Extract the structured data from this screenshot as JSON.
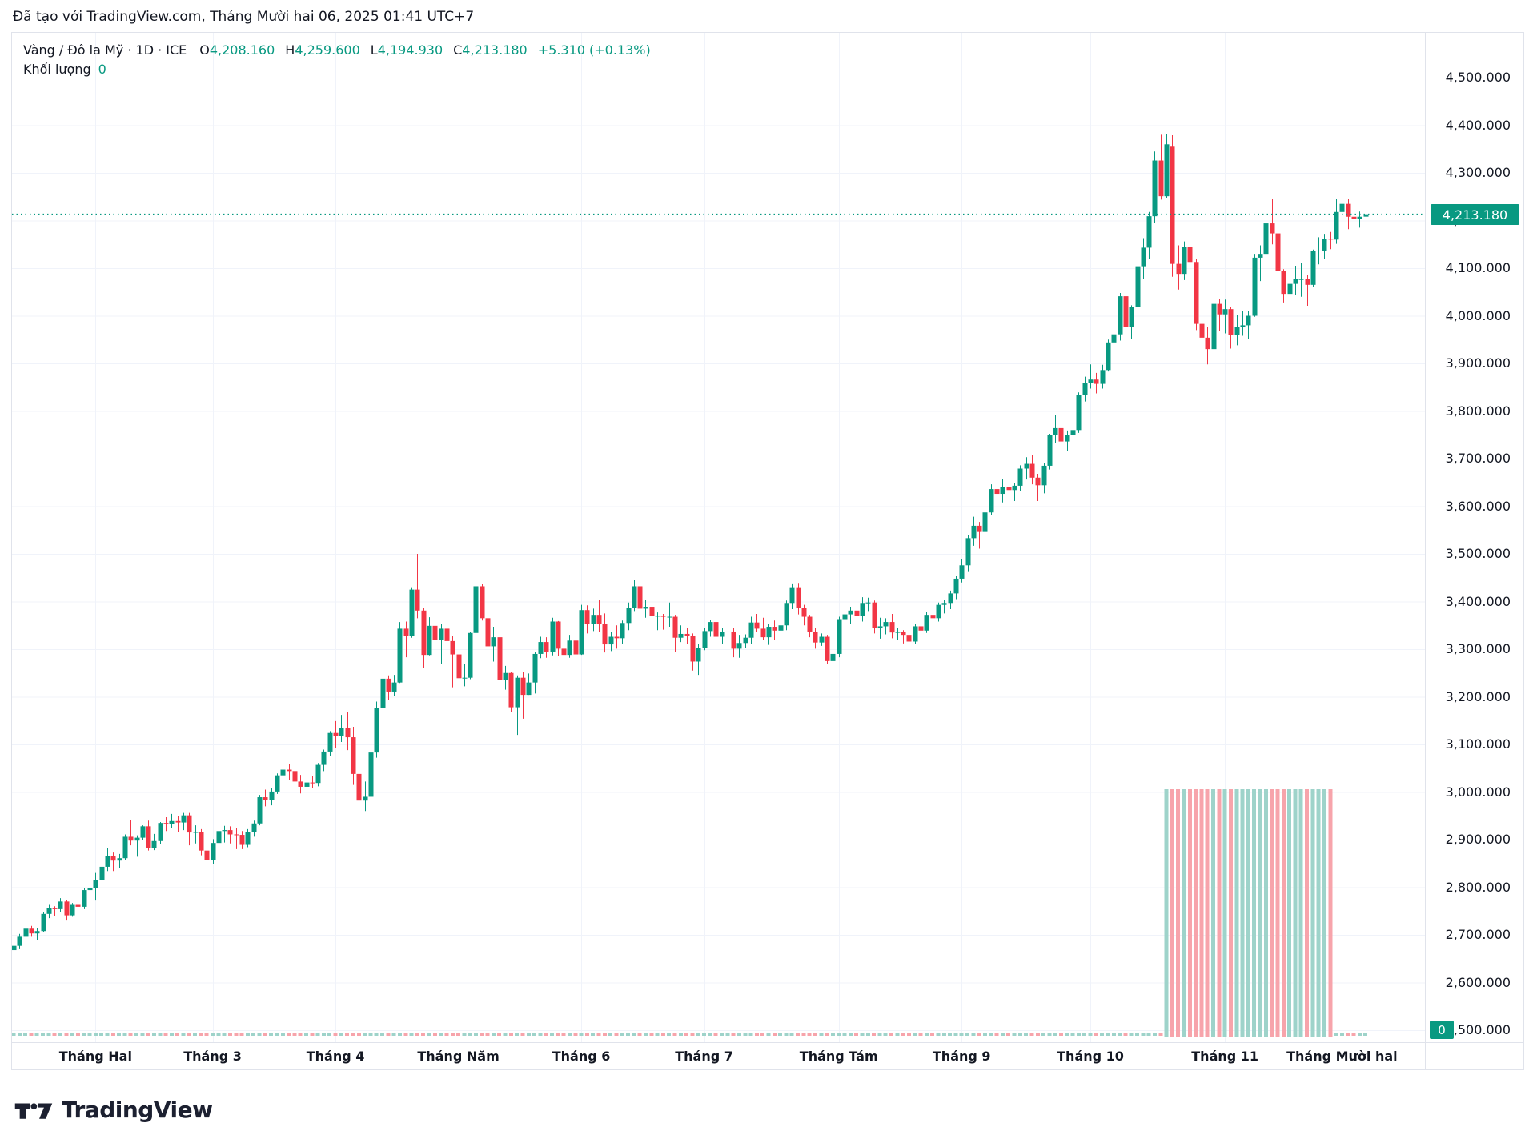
{
  "header": {
    "attribution": "Đã tạo với TradingView.com, Tháng Mười hai 06, 2025 01:41 UTC+7"
  },
  "legend": {
    "symbol": "Vàng / Đô la Mỹ · 1D · ICE",
    "items": [
      {
        "label": "O",
        "value": "4,208.160"
      },
      {
        "label": "H",
        "value": "4,259.600"
      },
      {
        "label": "L",
        "value": "4,194.930"
      },
      {
        "label": "C",
        "value": "4,213.180"
      }
    ],
    "change": "+5.310 (+0.13%)",
    "volume_label": "Khối lượng",
    "volume_value": "0"
  },
  "price_scale": {
    "last_price_label": "4,213.180",
    "volume_badge": "0",
    "ticks": [
      [
        "4,500.000",
        4500
      ],
      [
        "4,400.000",
        4400
      ],
      [
        "4,300.000",
        4300
      ],
      [
        "4,200.000",
        4200
      ],
      [
        "4,100.000",
        4100
      ],
      [
        "4,000.000",
        4000
      ],
      [
        "3,900.000",
        3900
      ],
      [
        "3,800.000",
        3800
      ],
      [
        "3,700.000",
        3700
      ],
      [
        "3,600.000",
        3600
      ],
      [
        "3,500.000",
        3500
      ],
      [
        "3,400.000",
        3400
      ],
      [
        "3,300.000",
        3300
      ],
      [
        "3,200.000",
        3200
      ],
      [
        "3,100.000",
        3100
      ],
      [
        "3,000.000",
        3000
      ],
      [
        "2,900.000",
        2900
      ],
      [
        "2,800.000",
        2800
      ],
      [
        "2,700.000",
        2700
      ],
      [
        "2,600.000",
        2600
      ],
      [
        "2,500.000",
        2500
      ]
    ]
  },
  "time_scale": {
    "ticks": [
      [
        "Tháng Hai",
        14
      ],
      [
        "Tháng 3",
        34
      ],
      [
        "Tháng 4",
        55
      ],
      [
        "Tháng Năm",
        76
      ],
      [
        "Tháng 6",
        97
      ],
      [
        "Tháng 7",
        118
      ],
      [
        "Tháng Tám",
        141
      ],
      [
        "Tháng 9",
        162
      ],
      [
        "Tháng 10",
        184
      ],
      [
        "Tháng 11",
        207
      ],
      [
        "Tháng Mười hai",
        227
      ]
    ]
  },
  "chart_data": {
    "type": "candlestick",
    "title": "Vàng / Đô la Mỹ",
    "timeframe": "1D",
    "exchange": "ICE",
    "ylabel": "",
    "xlabel": "",
    "y_axis": {
      "min": 2500,
      "max": 4500,
      "tick_step": 100,
      "grid": true
    },
    "last_price": 4213.18,
    "volume_full_height_range": [
      197,
      225
    ],
    "candles": [
      [
        2668,
        2684,
        2656,
        2677
      ],
      [
        2677,
        2702,
        2670,
        2696
      ],
      [
        2696,
        2724,
        2690,
        2713
      ],
      [
        2713,
        2719,
        2696,
        2703
      ],
      [
        2703,
        2715,
        2689,
        2708
      ],
      [
        2708,
        2748,
        2705,
        2744
      ],
      [
        2744,
        2763,
        2735,
        2756
      ],
      [
        2756,
        2760,
        2739,
        2754
      ],
      [
        2754,
        2777,
        2748,
        2770
      ],
      [
        2770,
        2773,
        2730,
        2741
      ],
      [
        2741,
        2767,
        2738,
        2763
      ],
      [
        2763,
        2770,
        2748,
        2759
      ],
      [
        2759,
        2798,
        2754,
        2794
      ],
      [
        2794,
        2817,
        2772,
        2798
      ],
      [
        2798,
        2830,
        2772,
        2815
      ],
      [
        2815,
        2845,
        2808,
        2843
      ],
      [
        2843,
        2882,
        2834,
        2866
      ],
      [
        2866,
        2873,
        2834,
        2856
      ],
      [
        2856,
        2870,
        2840,
        2861
      ],
      [
        2861,
        2911,
        2858,
        2906
      ],
      [
        2906,
        2942,
        2888,
        2898
      ],
      [
        2898,
        2909,
        2864,
        2904
      ],
      [
        2904,
        2930,
        2900,
        2928
      ],
      [
        2928,
        2940,
        2877,
        2883
      ],
      [
        2883,
        2912,
        2878,
        2897
      ],
      [
        2897,
        2937,
        2890,
        2935
      ],
      [
        2935,
        2947,
        2918,
        2933
      ],
      [
        2933,
        2954,
        2924,
        2939
      ],
      [
        2939,
        2950,
        2916,
        2936
      ],
      [
        2936,
        2956,
        2920,
        2951
      ],
      [
        2951,
        2956,
        2888,
        2915
      ],
      [
        2915,
        2930,
        2892,
        2916
      ],
      [
        2916,
        2922,
        2867,
        2877
      ],
      [
        2877,
        2885,
        2832,
        2857
      ],
      [
        2857,
        2901,
        2848,
        2893
      ],
      [
        2893,
        2927,
        2880,
        2918
      ],
      [
        2918,
        2929,
        2894,
        2920
      ],
      [
        2920,
        2928,
        2892,
        2911
      ],
      [
        2911,
        2924,
        2880,
        2910
      ],
      [
        2910,
        2918,
        2880,
        2889
      ],
      [
        2889,
        2922,
        2884,
        2916
      ],
      [
        2916,
        2940,
        2906,
        2934
      ],
      [
        2934,
        2994,
        2930,
        2989
      ],
      [
        2989,
        3005,
        2970,
        2984
      ],
      [
        2984,
        3009,
        2972,
        3001
      ],
      [
        3001,
        3039,
        2996,
        3035
      ],
      [
        3035,
        3057,
        3022,
        3047
      ],
      [
        3047,
        3059,
        3026,
        3044
      ],
      [
        3044,
        3052,
        3000,
        3022
      ],
      [
        3022,
        3036,
        2997,
        3011
      ],
      [
        3011,
        3031,
        3003,
        3020
      ],
      [
        3020,
        3033,
        3008,
        3019
      ],
      [
        3019,
        3061,
        3012,
        3057
      ],
      [
        3057,
        3089,
        3044,
        3085
      ],
      [
        3085,
        3128,
        3076,
        3124
      ],
      [
        3124,
        3149,
        3093,
        3118
      ],
      [
        3118,
        3162,
        3105,
        3134
      ],
      [
        3134,
        3168,
        3088,
        3115
      ],
      [
        3115,
        3137,
        3015,
        3038
      ],
      [
        3038,
        3056,
        2956,
        2982
      ],
      [
        2982,
        3022,
        2960,
        2990
      ],
      [
        2990,
        3100,
        2970,
        3083
      ],
      [
        3083,
        3190,
        3072,
        3177
      ],
      [
        3177,
        3248,
        3160,
        3238
      ],
      [
        3238,
        3245,
        3193,
        3211
      ],
      [
        3211,
        3246,
        3202,
        3230
      ],
      [
        3230,
        3357,
        3229,
        3343
      ],
      [
        3343,
        3358,
        3283,
        3327
      ],
      [
        3327,
        3430,
        3324,
        3425
      ],
      [
        3425,
        3500,
        3365,
        3381
      ],
      [
        3381,
        3386,
        3260,
        3288
      ],
      [
        3288,
        3367,
        3287,
        3349
      ],
      [
        3349,
        3352,
        3265,
        3320
      ],
      [
        3320,
        3352,
        3268,
        3343
      ],
      [
        3343,
        3348,
        3300,
        3317
      ],
      [
        3317,
        3327,
        3220,
        3289
      ],
      [
        3289,
        3298,
        3202,
        3239
      ],
      [
        3239,
        3269,
        3222,
        3240
      ],
      [
        3240,
        3337,
        3237,
        3334
      ],
      [
        3334,
        3438,
        3322,
        3432
      ],
      [
        3432,
        3437,
        3360,
        3365
      ],
      [
        3365,
        3415,
        3291,
        3306
      ],
      [
        3306,
        3347,
        3274,
        3325
      ],
      [
        3325,
        3328,
        3207,
        3236
      ],
      [
        3236,
        3265,
        3215,
        3250
      ],
      [
        3250,
        3252,
        3168,
        3178
      ],
      [
        3178,
        3245,
        3120,
        3240
      ],
      [
        3240,
        3252,
        3154,
        3204
      ],
      [
        3204,
        3249,
        3204,
        3230
      ],
      [
        3230,
        3295,
        3207,
        3290
      ],
      [
        3290,
        3326,
        3281,
        3315
      ],
      [
        3315,
        3325,
        3282,
        3295
      ],
      [
        3295,
        3366,
        3287,
        3358
      ],
      [
        3358,
        3359,
        3286,
        3301
      ],
      [
        3301,
        3325,
        3277,
        3288
      ],
      [
        3288,
        3330,
        3282,
        3318
      ],
      [
        3318,
        3322,
        3250,
        3289
      ],
      [
        3289,
        3393,
        3288,
        3382
      ],
      [
        3382,
        3392,
        3333,
        3353
      ],
      [
        3353,
        3385,
        3338,
        3372
      ],
      [
        3372,
        3403,
        3337,
        3353
      ],
      [
        3353,
        3375,
        3293,
        3310
      ],
      [
        3310,
        3337,
        3296,
        3326
      ],
      [
        3326,
        3350,
        3301,
        3323
      ],
      [
        3323,
        3360,
        3310,
        3355
      ],
      [
        3355,
        3398,
        3340,
        3386
      ],
      [
        3386,
        3446,
        3380,
        3432
      ],
      [
        3432,
        3451,
        3381,
        3385
      ],
      [
        3385,
        3403,
        3366,
        3389
      ],
      [
        3389,
        3396,
        3363,
        3369
      ],
      [
        3369,
        3377,
        3340,
        3370
      ],
      [
        3370,
        3374,
        3341,
        3368
      ],
      [
        3368,
        3398,
        3347,
        3368
      ],
      [
        3368,
        3372,
        3295,
        3324
      ],
      [
        3324,
        3350,
        3315,
        3332
      ],
      [
        3332,
        3345,
        3310,
        3328
      ],
      [
        3328,
        3333,
        3255,
        3274
      ],
      [
        3274,
        3310,
        3246,
        3303
      ],
      [
        3303,
        3345,
        3298,
        3338
      ],
      [
        3338,
        3362,
        3326,
        3357
      ],
      [
        3357,
        3366,
        3312,
        3326
      ],
      [
        3326,
        3345,
        3311,
        3337
      ],
      [
        3337,
        3343,
        3321,
        3337
      ],
      [
        3337,
        3345,
        3283,
        3301
      ],
      [
        3301,
        3330,
        3282,
        3313
      ],
      [
        3313,
        3331,
        3303,
        3324
      ],
      [
        3324,
        3368,
        3310,
        3356
      ],
      [
        3356,
        3374,
        3337,
        3343
      ],
      [
        3343,
        3366,
        3319,
        3325
      ],
      [
        3325,
        3352,
        3309,
        3347
      ],
      [
        3347,
        3360,
        3320,
        3339
      ],
      [
        3339,
        3360,
        3325,
        3350
      ],
      [
        3350,
        3402,
        3340,
        3397
      ],
      [
        3397,
        3438,
        3384,
        3430
      ],
      [
        3430,
        3439,
        3373,
        3387
      ],
      [
        3387,
        3393,
        3350,
        3368
      ],
      [
        3368,
        3372,
        3325,
        3337
      ],
      [
        3337,
        3345,
        3301,
        3314
      ],
      [
        3314,
        3333,
        3307,
        3326
      ],
      [
        3326,
        3330,
        3268,
        3275
      ],
      [
        3275,
        3311,
        3257,
        3290
      ],
      [
        3290,
        3368,
        3283,
        3363
      ],
      [
        3363,
        3385,
        3341,
        3373
      ],
      [
        3373,
        3389,
        3352,
        3381
      ],
      [
        3381,
        3393,
        3353,
        3369
      ],
      [
        3369,
        3409,
        3358,
        3397
      ],
      [
        3397,
        3408,
        3380,
        3398
      ],
      [
        3398,
        3402,
        3333,
        3344
      ],
      [
        3344,
        3366,
        3322,
        3348
      ],
      [
        3348,
        3365,
        3331,
        3357
      ],
      [
        3357,
        3374,
        3323,
        3335
      ],
      [
        3335,
        3345,
        3320,
        3336
      ],
      [
        3336,
        3340,
        3312,
        3330
      ],
      [
        3330,
        3337,
        3311,
        3316
      ],
      [
        3316,
        3352,
        3310,
        3348
      ],
      [
        3348,
        3352,
        3324,
        3339
      ],
      [
        3339,
        3378,
        3334,
        3372
      ],
      [
        3372,
        3386,
        3355,
        3365
      ],
      [
        3365,
        3398,
        3358,
        3393
      ],
      [
        3393,
        3403,
        3375,
        3397
      ],
      [
        3397,
        3423,
        3384,
        3417
      ],
      [
        3417,
        3453,
        3405,
        3448
      ],
      [
        3448,
        3489,
        3440,
        3476
      ],
      [
        3476,
        3540,
        3462,
        3533
      ],
      [
        3533,
        3578,
        3517,
        3559
      ],
      [
        3559,
        3567,
        3511,
        3546
      ],
      [
        3546,
        3600,
        3520,
        3587
      ],
      [
        3587,
        3646,
        3581,
        3636
      ],
      [
        3636,
        3659,
        3613,
        3626
      ],
      [
        3626,
        3657,
        3608,
        3641
      ],
      [
        3641,
        3649,
        3613,
        3634
      ],
      [
        3634,
        3649,
        3611,
        3643
      ],
      [
        3643,
        3686,
        3632,
        3679
      ],
      [
        3679,
        3703,
        3656,
        3689
      ],
      [
        3689,
        3707,
        3646,
        3660
      ],
      [
        3660,
        3668,
        3611,
        3644
      ],
      [
        3644,
        3690,
        3627,
        3685
      ],
      [
        3685,
        3752,
        3677,
        3749
      ],
      [
        3749,
        3791,
        3733,
        3764
      ],
      [
        3764,
        3773,
        3717,
        3736
      ],
      [
        3736,
        3759,
        3716,
        3749
      ],
      [
        3749,
        3773,
        3731,
        3760
      ],
      [
        3760,
        3839,
        3754,
        3834
      ],
      [
        3834,
        3872,
        3820,
        3858
      ],
      [
        3858,
        3898,
        3847,
        3866
      ],
      [
        3866,
        3880,
        3837,
        3857
      ],
      [
        3857,
        3897,
        3847,
        3886
      ],
      [
        3886,
        3950,
        3883,
        3944
      ],
      [
        3944,
        3977,
        3924,
        3961
      ],
      [
        3961,
        4048,
        3948,
        4041
      ],
      [
        4041,
        4054,
        3945,
        3976
      ],
      [
        3976,
        4022,
        3951,
        4018
      ],
      [
        4018,
        4110,
        4008,
        4104
      ],
      [
        4104,
        4163,
        4078,
        4143
      ],
      [
        4143,
        4218,
        4120,
        4209
      ],
      [
        4209,
        4345,
        4195,
        4326
      ],
      [
        4326,
        4380,
        4244,
        4251
      ],
      [
        4251,
        4381,
        4248,
        4360
      ],
      [
        4355,
        4379,
        4082,
        4109
      ],
      [
        4109,
        4148,
        4055,
        4088
      ],
      [
        4088,
        4156,
        4075,
        4145
      ],
      [
        4145,
        4160,
        4093,
        4113
      ],
      [
        4113,
        4120,
        3970,
        3983
      ],
      [
        3983,
        4015,
        3886,
        3954
      ],
      [
        3954,
        3976,
        3898,
        3930
      ],
      [
        3930,
        4028,
        3912,
        4025
      ],
      [
        4025,
        4036,
        3968,
        4003
      ],
      [
        4003,
        4034,
        3963,
        4014
      ],
      [
        4014,
        4018,
        3931,
        3960
      ],
      [
        3960,
        4001,
        3938,
        3976
      ],
      [
        3976,
        4011,
        3958,
        3980
      ],
      [
        3980,
        4011,
        3952,
        4000
      ],
      [
        4000,
        4130,
        3998,
        4122
      ],
      [
        4122,
        4148,
        4073,
        4130
      ],
      [
        4130,
        4199,
        4110,
        4194
      ],
      [
        4194,
        4245,
        4150,
        4173
      ],
      [
        4173,
        4179,
        4030,
        4094
      ],
      [
        4094,
        4098,
        4028,
        4046
      ],
      [
        4046,
        4075,
        3998,
        4067
      ],
      [
        4067,
        4105,
        4044,
        4077
      ],
      [
        4077,
        4110,
        4040,
        4077
      ],
      [
        4077,
        4086,
        4021,
        4065
      ],
      [
        4065,
        4139,
        4060,
        4136
      ],
      [
        4136,
        4165,
        4108,
        4137
      ],
      [
        4137,
        4172,
        4120,
        4162
      ],
      [
        4162,
        4176,
        4140,
        4160
      ],
      [
        4160,
        4245,
        4151,
        4218
      ],
      [
        4218,
        4265,
        4200,
        4235
      ],
      [
        4235,
        4246,
        4182,
        4208
      ],
      [
        4208,
        4225,
        4175,
        4203
      ],
      [
        4203,
        4219,
        4185,
        4208
      ],
      [
        4208.16,
        4259.6,
        4194.93,
        4213.18
      ]
    ]
  },
  "colors": {
    "up": "#089981",
    "down": "#F23645",
    "up_soft": "#9ed3ca",
    "down_soft": "#f7a4ab",
    "accent": "#089981",
    "text": "#131722",
    "grid": "#f0f3fa",
    "border": "#e0e3eb",
    "badge_text": "#ffffff"
  },
  "footer": {
    "logo_text": "TradingView"
  }
}
